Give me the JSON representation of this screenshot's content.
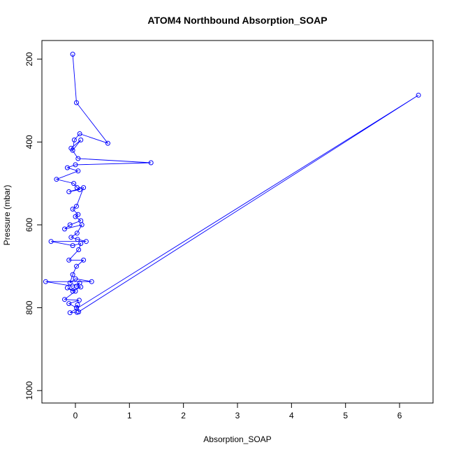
{
  "chart_data": {
    "type": "line",
    "title": "ATOM4 Northbound Absorption_SOAP",
    "xlabel": "Absorption_SOAP",
    "ylabel": "Pressure (mbar)",
    "xlim": [
      -0.62,
      6.62
    ],
    "ylim": [
      1030,
      155
    ],
    "y_reversed": true,
    "xticks": [
      0,
      1,
      2,
      3,
      4,
      5,
      6
    ],
    "xtick_labels": [
      "0",
      "1",
      "2",
      "3",
      "4",
      "5",
      "6"
    ],
    "yticks": [
      200,
      400,
      600,
      800,
      1000
    ],
    "ytick_labels": [
      "200",
      "400",
      "600",
      "800",
      "1000"
    ],
    "grid": false,
    "color": "#0000ff",
    "series": [
      {
        "marker": "open-circle",
        "x": [
          -0.05,
          0.02,
          0.6,
          0.08,
          -0.02,
          -0.05,
          0.1,
          -0.08,
          0.05,
          1.4,
          0.0,
          -0.15,
          0.05,
          -0.35,
          -0.03,
          0.03,
          0.08,
          -0.12,
          0.15,
          0.02,
          -0.05,
          0.05,
          0.0,
          0.1,
          -0.1,
          -0.2,
          0.12,
          0.03,
          -0.08,
          0.04,
          0.2,
          -0.45,
          -0.05,
          0.1,
          0.06,
          -0.12,
          0.15,
          0.02,
          -0.05,
          -0.1,
          0.0,
          0.3,
          -0.55,
          -0.05,
          0.08,
          0.02,
          0.1,
          -0.05,
          -0.15,
          0.0,
          -0.2,
          0.07,
          -0.12,
          0.02,
          0.04,
          0.06,
          6.35,
          -0.1,
          0.03
        ],
        "y": [
          188,
          305,
          403,
          380,
          395,
          420,
          395,
          415,
          440,
          450,
          455,
          462,
          470,
          490,
          500,
          510,
          515,
          520,
          510,
          555,
          562,
          575,
          580,
          590,
          600,
          610,
          600,
          620,
          630,
          635,
          640,
          640,
          650,
          645,
          660,
          685,
          685,
          700,
          720,
          740,
          730,
          737,
          737,
          748,
          740,
          748,
          750,
          760,
          752,
          760,
          780,
          782,
          790,
          800,
          793,
          810,
          287,
          812,
          811
        ]
      }
    ]
  }
}
